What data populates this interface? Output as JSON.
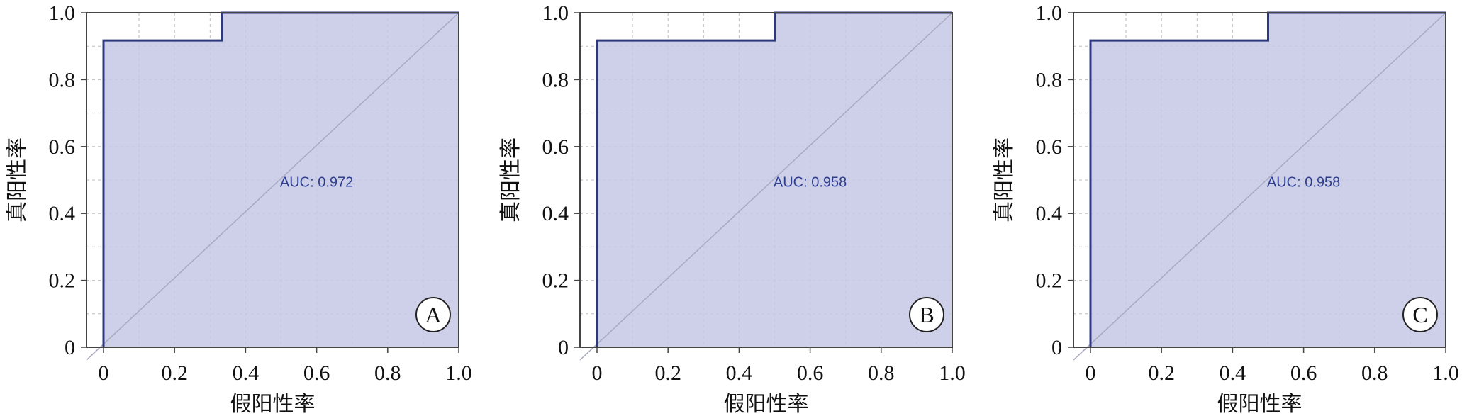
{
  "chart_data": [
    {
      "type": "line",
      "panel_label": "A",
      "auc_label": "AUC: 0.972",
      "xlabel": "假阳性率",
      "ylabel": "真阳性率",
      "xlim": [
        0,
        1
      ],
      "ylim": [
        0,
        1
      ],
      "xticks": [
        "0",
        "0.2",
        "0.4",
        "0.6",
        "0.8",
        "1.0"
      ],
      "yticks": [
        "0",
        "0.2",
        "0.4",
        "0.6",
        "0.8",
        "1.0"
      ],
      "grid": true,
      "roc": {
        "x": [
          0,
          0,
          0.333,
          0.333,
          1.0
        ],
        "y": [
          0,
          0.917,
          0.917,
          1.0,
          1.0
        ]
      }
    },
    {
      "type": "line",
      "panel_label": "B",
      "auc_label": "AUC: 0.958",
      "xlabel": "假阳性率",
      "ylabel": "真阳性率",
      "xlim": [
        0,
        1
      ],
      "ylim": [
        0,
        1
      ],
      "xticks": [
        "0",
        "0.2",
        "0.4",
        "0.6",
        "0.8",
        "1.0"
      ],
      "yticks": [
        "0",
        "0.2",
        "0.4",
        "0.6",
        "0.8",
        "1.0"
      ],
      "grid": true,
      "roc": {
        "x": [
          0,
          0,
          0.5,
          0.5,
          1.0
        ],
        "y": [
          0,
          0.917,
          0.917,
          1.0,
          1.0
        ]
      }
    },
    {
      "type": "line",
      "panel_label": "C",
      "auc_label": "AUC: 0.958",
      "xlabel": "假阳性率",
      "ylabel": "真阳性率",
      "xlim": [
        0,
        1
      ],
      "ylim": [
        0,
        1
      ],
      "xticks": [
        "0",
        "0.2",
        "0.4",
        "0.6",
        "0.8",
        "1.0"
      ],
      "yticks": [
        "0",
        "0.2",
        "0.4",
        "0.6",
        "0.8",
        "1.0"
      ],
      "grid": true,
      "roc": {
        "x": [
          0,
          0,
          0.5,
          0.5,
          1.0
        ],
        "y": [
          0,
          0.917,
          0.917,
          1.0,
          1.0
        ]
      }
    }
  ]
}
